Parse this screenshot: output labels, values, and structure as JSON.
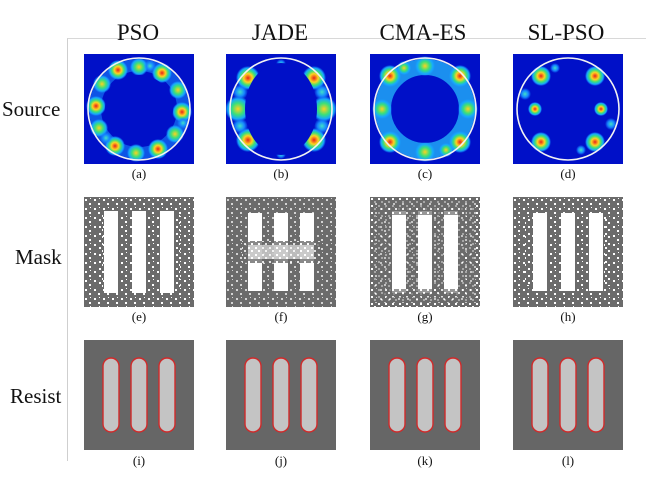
{
  "columns": [
    "PSO",
    "JADE",
    "CMA-ES",
    "SL-PSO"
  ],
  "rows": [
    "Source",
    "Mask",
    "Resist"
  ],
  "panel_labels": [
    [
      "(a)",
      "(b)",
      "(c)",
      "(d)"
    ],
    [
      "(e)",
      "(f)",
      "(g)",
      "(h)"
    ],
    [
      "(i)",
      "(j)",
      "(k)",
      "(l)"
    ]
  ],
  "colors": {
    "source_background": "#0010c8",
    "source_hot": "#e8201a",
    "mask_gray": "#6b6b6b",
    "mask_white": "#ffffff",
    "resist_background": "#666666",
    "resist_bar": "#c4c4c4",
    "resist_edge": "#d12a2a"
  }
}
